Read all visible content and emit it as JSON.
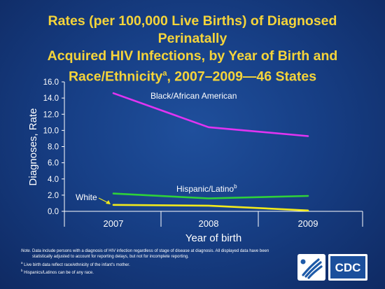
{
  "title": {
    "line1": "Rates (per 100,000 Live Births) of Diagnosed Perinatally",
    "line2": "Acquired HIV Infections, by Year of Birth and",
    "line3_main": "Race/Ethnicity",
    "line3_sup": "a",
    "line3_rest": ", 2007–2009—46 States"
  },
  "chart_data": {
    "type": "line",
    "title": "Rates (per 100,000 Live Births) of Diagnosed Perinatally Acquired HIV Infections, by Year of Birth and Race/Ethnicity, 2007–2009—46 States",
    "xlabel": "Year of birth",
    "ylabel": "Diagnoses, Rate",
    "ylim": [
      0,
      16
    ],
    "yticks": [
      "0.0",
      "2.0",
      "4.0",
      "6.0",
      "8.0",
      "10.0",
      "12.0",
      "14.0",
      "16.0"
    ],
    "categories": [
      "2007",
      "2008",
      "2009"
    ],
    "series": [
      {
        "name": "Black/African American",
        "values": [
          14.6,
          10.4,
          9.3
        ],
        "color": "#e034f2"
      },
      {
        "name": "Hispanic/Latino",
        "name_sup": "b",
        "values": [
          2.2,
          1.6,
          1.9
        ],
        "color": "#2fd13a"
      },
      {
        "name": "White",
        "values": [
          0.8,
          0.7,
          0.1
        ],
        "color": "#f2ea1c"
      }
    ],
    "grid": false
  },
  "footnotes": {
    "note_label": "Note.",
    "note_text": " Data include persons with a diagnosis of HIV infection regardless of stage of disease at diagnosis. All displayed data have been",
    "note_text2": "statistically adjusted to account for reporting delays, but not for incomplete reporting.",
    "a_sup": "a",
    "a_text": " Live birth data reflect race/ethnicity of the infant's mother.",
    "b_sup": "b",
    "b_text": " Hispanics/Latinos can be of any race."
  },
  "logo": {
    "text": "CDC",
    "colors": {
      "hhs_blue": "#1d5aa8",
      "cdc_blue": "#1b4f9c",
      "white": "#ffffff"
    }
  }
}
